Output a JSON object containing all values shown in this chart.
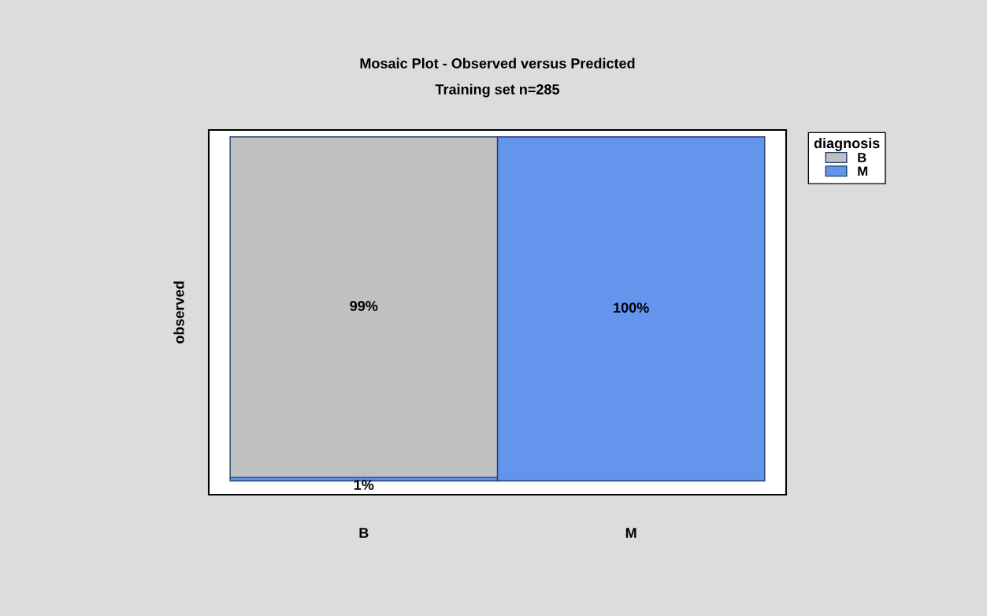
{
  "chart_data": {
    "type": "bar",
    "stacked": true,
    "title": "Mosaic Plot - Observed versus Predicted",
    "subtitle": "Training set n=285",
    "ylabel": "observed",
    "legend_title": "diagnosis",
    "legend": "top right",
    "grid": false,
    "tick_labels": "x",
    "categories": [
      "B",
      "M"
    ],
    "series": [
      {
        "name": "M",
        "color": "#6495ed",
        "values": [
          1,
          100
        ],
        "value_labels": [
          "1%",
          "100%"
        ]
      },
      {
        "name": "B",
        "color": "#c0c0c0",
        "values": [
          99,
          null
        ],
        "value_labels": [
          "99%",
          null
        ]
      }
    ]
  }
}
